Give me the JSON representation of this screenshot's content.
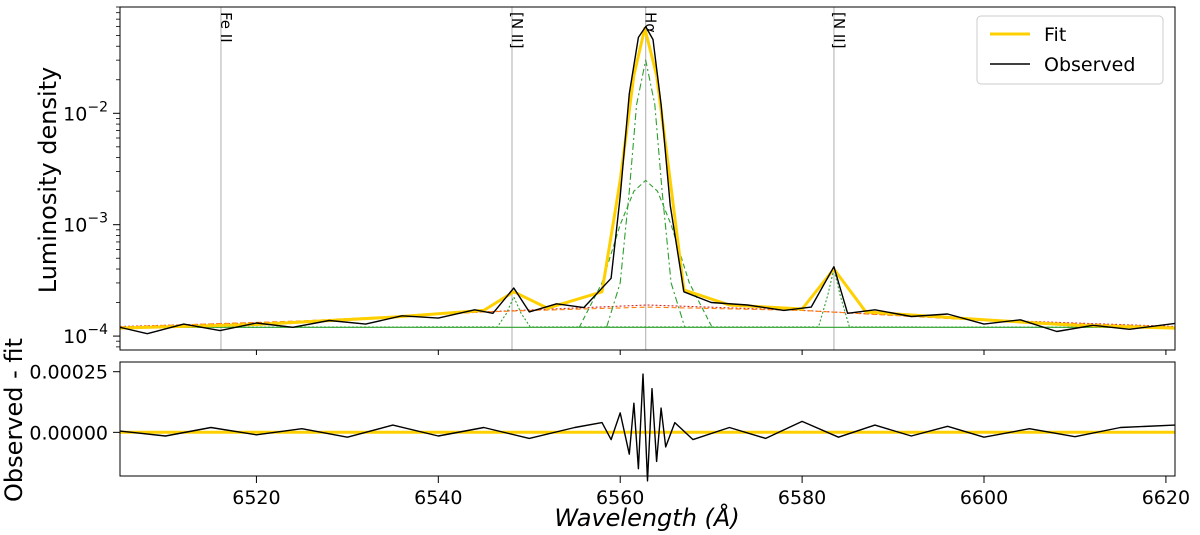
{
  "chart_data": [
    {
      "type": "line",
      "panel": "spectrum",
      "ylabel": "Luminosity density",
      "yscale": "log",
      "ylim": [
        7.5e-05,
        0.09
      ],
      "xlim": [
        6505,
        6621
      ],
      "yticks": [
        {
          "value": 0.0001,
          "base": "10",
          "exp": "−4"
        },
        {
          "value": 0.001,
          "base": "10",
          "exp": "−3"
        },
        {
          "value": 0.01,
          "base": "10",
          "exp": "−2"
        }
      ],
      "legend": {
        "position": "top-right",
        "entries": [
          {
            "label": "Fit",
            "color": "#ffd000"
          },
          {
            "label": "Observed",
            "color": "#000000"
          }
        ]
      },
      "line_markers": [
        {
          "label": "Fe II",
          "x": 6516.1
        },
        {
          "label": "[N II]",
          "x": 6548.1
        },
        {
          "label": "Hα",
          "x": 6562.8
        },
        {
          "label": "[N II]",
          "x": 6583.5
        }
      ],
      "series": [
        {
          "name": "Fit",
          "color": "#ffd000",
          "style": "solid",
          "x": [
            6505,
            6520,
            6535,
            6545,
            6548.3,
            6552,
            6558,
            6560,
            6561.5,
            6562.7,
            6564,
            6565.5,
            6567,
            6572,
            6580,
            6583.5,
            6587,
            6600,
            6610,
            6621
          ],
          "y": [
            0.000118,
            0.000127,
            0.000148,
            0.00017,
            0.00025,
            0.000178,
            0.00025,
            0.0025,
            0.022,
            0.058,
            0.022,
            0.0025,
            0.00026,
            0.00019,
            0.000175,
            0.0004,
            0.000165,
            0.00014,
            0.000125,
            0.000118
          ]
        },
        {
          "name": "Observed",
          "color": "#000000",
          "style": "solid",
          "x": [
            6505,
            6508,
            6512,
            6516,
            6520,
            6524,
            6528,
            6532,
            6536,
            6540,
            6544,
            6546,
            6548.3,
            6550,
            6553,
            6556,
            6559,
            6560,
            6561,
            6562,
            6562.8,
            6563.6,
            6564.5,
            6565.5,
            6567,
            6570,
            6574,
            6578,
            6581,
            6583.5,
            6585,
            6588,
            6592,
            6596,
            6600,
            6604,
            6608,
            6612,
            6616,
            6621
          ],
          "y": [
            0.00012,
            0.000105,
            0.000128,
            0.000112,
            0.000131,
            0.00012,
            0.000138,
            0.000128,
            0.000152,
            0.000145,
            0.000172,
            0.00016,
            0.00027,
            0.000165,
            0.000195,
            0.00018,
            0.00033,
            0.0018,
            0.015,
            0.048,
            0.06,
            0.046,
            0.012,
            0.0015,
            0.00025,
            0.0002,
            0.00019,
            0.00017,
            0.000182,
            0.00042,
            0.00016,
            0.000172,
            0.00015,
            0.000158,
            0.000128,
            0.00014,
            0.00011,
            0.000125,
            0.000115,
            0.00013
          ]
        },
        {
          "name": "",
          "color": "#d62728",
          "style": "dotted",
          "x": [
            6505,
            6525,
            6545,
            6563,
            6580,
            6600,
            6621
          ],
          "y": [
            0.000122,
            0.000135,
            0.000165,
            0.00019,
            0.00017,
            0.00014,
            0.000122
          ]
        },
        {
          "name": "",
          "color": "#ff7f0e",
          "style": "dashed",
          "x": [
            6505,
            6525,
            6545,
            6563,
            6580,
            6600,
            6621
          ],
          "y": [
            0.000121,
            0.000137,
            0.000165,
            0.000182,
            0.00017,
            0.000138,
            0.000121
          ]
        },
        {
          "name": "",
          "color": "#2ca02c",
          "style": "solid",
          "x": [
            6505,
            6621
          ],
          "y": [
            0.00012,
            0.00012
          ]
        },
        {
          "name": "",
          "color": "#2ca02c",
          "style": "dotted",
          "x": [
            6505,
            6546.5,
            6547.5,
            6548.3,
            6549.1,
            6550.1,
            6581.8,
            6582.8,
            6583.5,
            6584.2,
            6585.2,
            6621
          ],
          "y": [
            0.00012,
            0.000121,
            0.00016,
            0.000225,
            0.00016,
            0.000121,
            0.000121,
            0.00023,
            0.0004,
            0.00023,
            0.000121,
            0.00012
          ]
        },
        {
          "name": "",
          "color": "#2ca02c",
          "style": "dashdot",
          "x": [
            6558.5,
            6560,
            6561,
            6561.8,
            6562.8,
            6563.8,
            6564.6,
            6565.6,
            6567.1
          ],
          "y": [
            0.00012,
            0.0003,
            0.002,
            0.012,
            0.03,
            0.012,
            0.002,
            0.0003,
            0.00012
          ]
        },
        {
          "name": "",
          "color": "#2ca02c",
          "style": "dashed",
          "x": [
            6555.5,
            6558,
            6560,
            6561.5,
            6562.8,
            6564.1,
            6565.6,
            6567.6,
            6570.1
          ],
          "y": [
            0.00012,
            0.0003,
            0.001,
            0.002,
            0.0025,
            0.002,
            0.001,
            0.0003,
            0.00012
          ]
        }
      ]
    },
    {
      "type": "line",
      "panel": "residuals",
      "ylabel": "Observed - fit",
      "xlabel": "Wavelength (Å)",
      "xlim": [
        6505,
        6621
      ],
      "ylim": [
        -0.00018,
        0.00029
      ],
      "yticks": [
        {
          "value": 0.0,
          "label": "0.00000"
        },
        {
          "value": 0.00025,
          "label": "0.00025"
        }
      ],
      "xticks": [
        6520,
        6540,
        6560,
        6580,
        6600,
        6620
      ],
      "series": [
        {
          "name": "Fit",
          "color": "#ffd000",
          "x": [
            6505,
            6621
          ],
          "y": [
            0.0,
            0.0
          ]
        },
        {
          "name": "Observed",
          "color": "#000000",
          "x": [
            6505,
            6510,
            6515,
            6520,
            6525,
            6530,
            6535,
            6540,
            6545,
            6550,
            6555,
            6558,
            6559,
            6560,
            6561,
            6561.5,
            6562,
            6562.5,
            6563,
            6563.5,
            6564,
            6564.5,
            6565,
            6566,
            6568,
            6572,
            6576,
            6580,
            6584,
            6588,
            6592,
            6596,
            6600,
            6605,
            6610,
            6615,
            6621
          ],
          "y": [
            5e-06,
            -1.5e-05,
            2e-05,
            -1e-05,
            1.5e-05,
            -2e-05,
            3e-05,
            -1.5e-05,
            2e-05,
            -2.5e-05,
            2e-05,
            4e-05,
            -3e-05,
            8e-05,
            -9e-05,
            0.00012,
            -0.00015,
            0.00024,
            -0.0002,
            0.00018,
            -0.00012,
            0.0001,
            -6e-05,
            4e-05,
            -3e-05,
            2e-05,
            -2.5e-05,
            4.5e-05,
            -2e-05,
            3e-05,
            -1.5e-05,
            2.5e-05,
            -2e-05,
            1.5e-05,
            -1.8e-05,
            2e-05,
            3e-05
          ]
        }
      ]
    }
  ]
}
